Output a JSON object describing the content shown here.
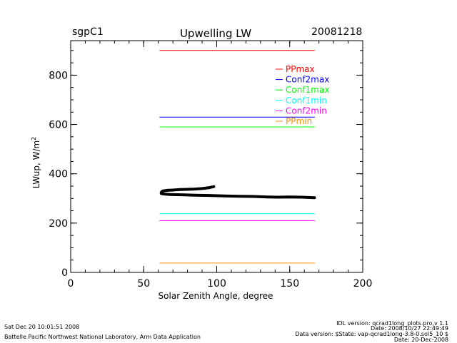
{
  "header": {
    "site": "sgpC1",
    "date": "20081218"
  },
  "footer": {
    "timestamp": "Sat Dec 20 10:01:51 2008",
    "institution": "Battelle Pacific Northwest National Laboratory, Arm Data Application",
    "idl_version": "IDL version: qcrad1long_plots.pro,v 1.1",
    "date_line": "Date: 2008/10/27 22:49:49",
    "data_version": "Data version: $State: vap-qcrad1long-3.8-0.sol5_10 $",
    "run_date": "Date: 20-Dec-2008"
  },
  "chart_data": {
    "type": "line",
    "title": "Upwelling LW",
    "xlabel": "Solar Zenith Angle, degree",
    "ylabel": "LWup, W/m²",
    "ylabel_main": "LWup, W/m",
    "ylabel_sup": "2",
    "xlim": [
      0,
      200
    ],
    "ylim": [
      0,
      940
    ],
    "xticks": [
      0,
      50,
      100,
      150,
      200
    ],
    "yticks": [
      0,
      200,
      400,
      600,
      800
    ],
    "xminor_step": 10,
    "yminor_step": 50,
    "grid": false,
    "legend_position": "top-right",
    "series": [
      {
        "name": "PPmax",
        "color": "#ff0000",
        "x": [
          61,
          167
        ],
        "y": [
          900,
          900
        ]
      },
      {
        "name": "Conf2max",
        "color": "#0000ff",
        "x": [
          61,
          167
        ],
        "y": [
          630,
          630
        ]
      },
      {
        "name": "Conf1max",
        "color": "#00ff00",
        "x": [
          61,
          167
        ],
        "y": [
          590,
          590
        ]
      },
      {
        "name": "Conf1min",
        "color": "#00ffff",
        "x": [
          61,
          167
        ],
        "y": [
          238,
          238
        ]
      },
      {
        "name": "Conf2min",
        "color": "#ff00ff",
        "x": [
          61,
          167
        ],
        "y": [
          210,
          210
        ]
      },
      {
        "name": "PPmin",
        "color": "#ff8c00",
        "x": [
          61,
          167
        ],
        "y": [
          38,
          38
        ]
      },
      {
        "name": "LWup",
        "color": "#000000",
        "x": [
          98,
          95,
          90,
          85,
          80,
          75,
          70,
          66,
          63,
          62,
          62,
          64,
          68,
          75,
          85,
          95,
          105,
          115,
          125,
          135,
          142,
          150,
          158,
          167
        ],
        "y": [
          348,
          344,
          340,
          338,
          337,
          336,
          334,
          333,
          330,
          325,
          320,
          318,
          316,
          315,
          313,
          312,
          310,
          309,
          308,
          306,
          305,
          306,
          305,
          303
        ]
      }
    ]
  }
}
